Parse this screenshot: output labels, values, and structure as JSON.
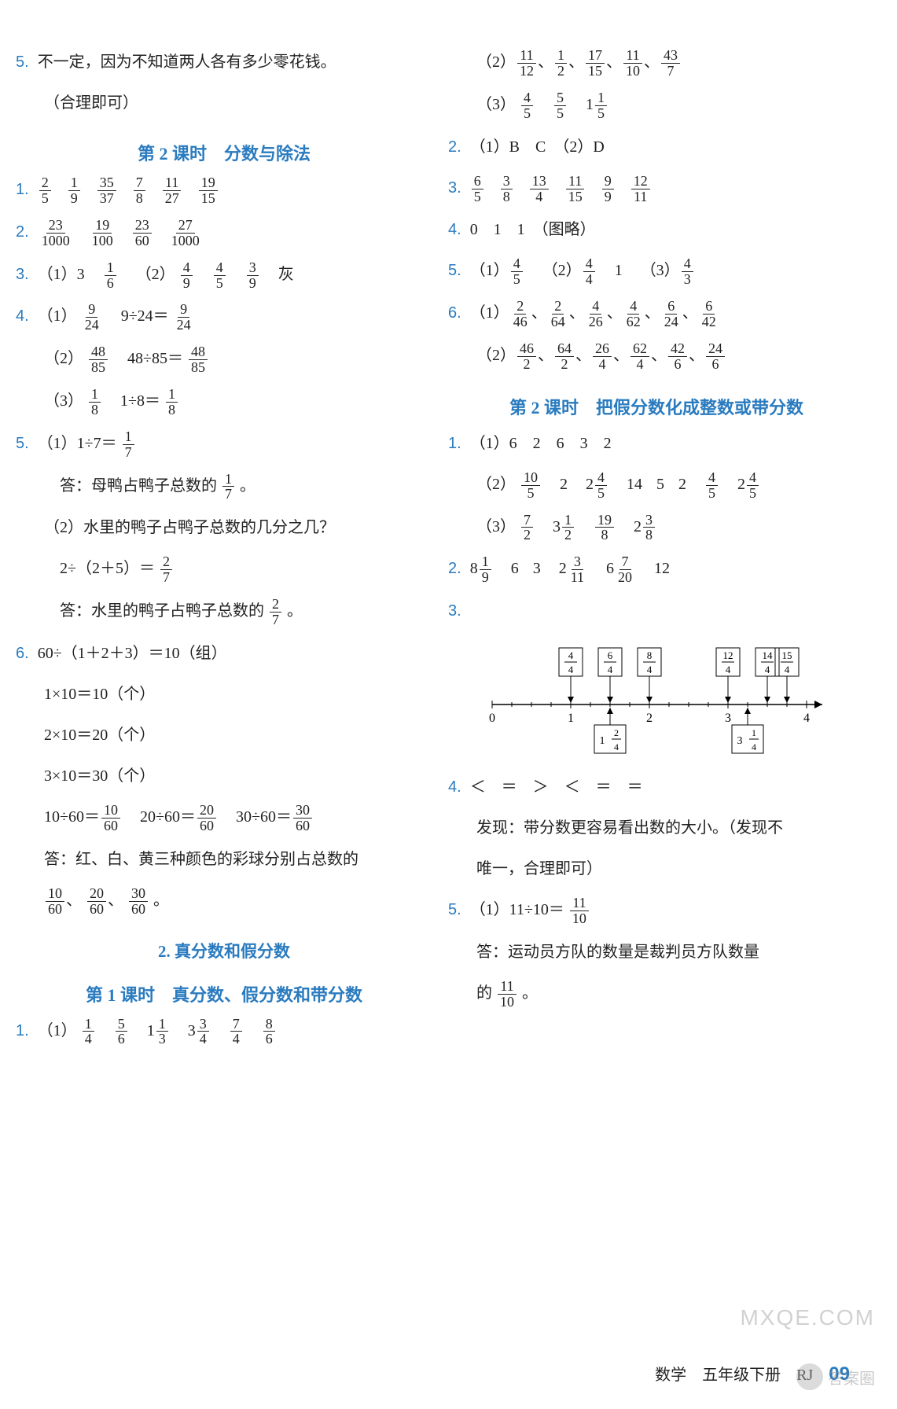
{
  "left": {
    "q5_top": "不一定，因为不知道两人各有多少零花钱。",
    "q5_note": "（合理即可）",
    "heading1": "第 2 课时　分数与除法",
    "q1_fracs": [
      [
        "2",
        "5"
      ],
      [
        "1",
        "9"
      ],
      [
        "35",
        "37"
      ],
      [
        "7",
        "8"
      ],
      [
        "11",
        "27"
      ],
      [
        "19",
        "15"
      ]
    ],
    "q2_fracs": [
      [
        "23",
        "1000"
      ],
      [
        "19",
        "100"
      ],
      [
        "23",
        "60"
      ],
      [
        "27",
        "1000"
      ]
    ],
    "q3": {
      "p1a": "（1）3",
      "f1": [
        "1",
        "6"
      ],
      "p1b": "（2）",
      "f2": [
        "4",
        "9"
      ],
      "f3": [
        "4",
        "5"
      ],
      "f4": [
        "3",
        "9"
      ],
      "tail": "灰"
    },
    "q4": {
      "l1a": "（1）",
      "f1": [
        "9",
        "24"
      ],
      "l1b": "9÷24＝",
      "f1b": [
        "9",
        "24"
      ],
      "l2a": "（2）",
      "f2": [
        "48",
        "85"
      ],
      "l2b": "48÷85＝",
      "f2b": [
        "48",
        "85"
      ],
      "l3a": "（3）",
      "f3": [
        "1",
        "8"
      ],
      "l3b": "1÷8＝",
      "f3b": [
        "1",
        "8"
      ]
    },
    "q5": {
      "l1a": "（1）1÷7＝",
      "f1": [
        "1",
        "7"
      ],
      "ans1a": "答：母鸭占鸭子总数的",
      "ans1f": [
        "1",
        "7"
      ],
      "ans1b": "。",
      "l2": "（2）水里的鸭子占鸭子总数的几分之几？",
      "l3a": "2÷（2＋5）＝",
      "f3": [
        "2",
        "7"
      ],
      "ans2a": "答：水里的鸭子占鸭子总数的",
      "ans2f": [
        "2",
        "7"
      ],
      "ans2b": "。"
    },
    "q6": {
      "l1": "60÷（1＋2＋3）＝10（组）",
      "l2": "1×10＝10（个）",
      "l3": "2×10＝20（个）",
      "l4": "3×10＝30（个）",
      "l5a": "10÷60＝",
      "f5a": [
        "10",
        "60"
      ],
      "l5b": "20÷60＝",
      "f5b": [
        "20",
        "60"
      ],
      "l5c": "30÷60＝",
      "f5c": [
        "30",
        "60"
      ],
      "ans": "答：红、白、黄三种颜色的彩球分别占总数的",
      "fa": [
        "10",
        "60"
      ],
      "fb": [
        "20",
        "60"
      ],
      "fc": [
        "30",
        "60"
      ],
      "tail": "。"
    },
    "heading2": "2. 真分数和假分数",
    "heading3": "第 1 课时　真分数、假分数和带分数",
    "q1b": {
      "p": "（1）",
      "f1": [
        "1",
        "4"
      ],
      "f2": [
        "5",
        "6"
      ],
      "m1a": "1",
      "m1f": [
        "1",
        "3"
      ],
      "m2a": "3",
      "m2f": [
        "3",
        "4"
      ],
      "f3": [
        "7",
        "4"
      ],
      "f4": [
        "8",
        "6"
      ]
    }
  },
  "right": {
    "cont": {
      "l2p": "（2）",
      "l2": [
        [
          "11",
          "12"
        ],
        [
          "1",
          "2"
        ],
        [
          "17",
          "15"
        ],
        [
          "11",
          "10"
        ],
        [
          "43",
          "7"
        ]
      ],
      "l3p": "（3）",
      "l3f1": [
        "4",
        "5"
      ],
      "l3f2": [
        "5",
        "5"
      ],
      "l3m": "1",
      "l3mf": [
        "1",
        "5"
      ]
    },
    "q2": "（1）B　C　（2）D",
    "q3_fracs": [
      [
        "6",
        "5"
      ],
      [
        "3",
        "8"
      ],
      [
        "13",
        "4"
      ],
      [
        "11",
        "15"
      ],
      [
        "9",
        "9"
      ],
      [
        "12",
        "11"
      ]
    ],
    "q4": "0　1　1　（图略）",
    "q5": {
      "p1": "（1）",
      "f1": [
        "4",
        "5"
      ],
      "p2": "（2）",
      "f2": [
        "4",
        "4"
      ],
      "one": "1",
      "p3": "（3）",
      "f3": [
        "4",
        "3"
      ]
    },
    "q6": {
      "p1": "（1）",
      "l1": [
        [
          "2",
          "46"
        ],
        [
          "2",
          "64"
        ],
        [
          "4",
          "26"
        ],
        [
          "4",
          "62"
        ],
        [
          "6",
          "24"
        ],
        [
          "6",
          "42"
        ]
      ],
      "p2": "（2）",
      "l2": [
        [
          "46",
          "2"
        ],
        [
          "64",
          "2"
        ],
        [
          "26",
          "4"
        ],
        [
          "62",
          "4"
        ],
        [
          "42",
          "6"
        ],
        [
          "24",
          "6"
        ]
      ]
    },
    "heading1": "第 2 课时　把假分数化成整数或带分数",
    "q1b": {
      "l1": "（1）6　2　6　3　2",
      "l2p": "（2）",
      "l2f": [
        "10",
        "5"
      ],
      "l2seq": [
        "2",
        "2",
        "",
        "14",
        "5",
        "2",
        "",
        "2",
        ""
      ],
      "l2mf1": [
        "4",
        "5"
      ],
      "l2mf2": [
        "4",
        "5"
      ],
      "l2mf3": [
        "4",
        "5"
      ],
      "l3p": "（3）",
      "l3f1": [
        "7",
        "2"
      ],
      "l3m1": "3",
      "l3mf1": [
        "1",
        "2"
      ],
      "l3f2": [
        "19",
        "8"
      ],
      "l3m2": "2",
      "l3mf2": [
        "3",
        "8"
      ]
    },
    "q2b": {
      "m1": "8",
      "f1": [
        "1",
        "9"
      ],
      "t1": "6",
      "t2": "3",
      "m2": "2",
      "f2": [
        "3",
        "11"
      ],
      "m3": "6",
      "f3": [
        "7",
        "20"
      ],
      "t3": "12"
    },
    "diagram": {
      "top_boxes": [
        [
          "4",
          "4"
        ],
        [
          "6",
          "4"
        ],
        [
          "8",
          "4"
        ],
        [
          "12",
          "4"
        ],
        [
          "14",
          "4"
        ],
        [
          "15",
          "4"
        ]
      ],
      "bottom_boxes": {
        "b1": [
          "1",
          "2",
          "4"
        ],
        "b2": [
          "3",
          "1",
          "4"
        ]
      },
      "ticks": [
        "0",
        "1",
        "2",
        "3",
        "4"
      ]
    },
    "q4b": "＜　＝　＞　＜　＝　＝",
    "q4b_note1": "发现：带分数更容易看出数的大小。（发现不",
    "q4b_note2": "唯一，合理即可）",
    "q5b": {
      "l1a": "（1）11÷10＝",
      "f1": [
        "11",
        "10"
      ],
      "ans1": "答：运动员方队的数量是裁判员方队数量",
      "ans2a": "的",
      "f2": [
        "11",
        "10"
      ],
      "ans2b": "。"
    }
  },
  "footer": {
    "subject": "数学",
    "grade": "五年级下册",
    "rj": "RJ",
    "page": "09"
  },
  "wm1": "MXQE.COM",
  "wm2": "答案圈"
}
